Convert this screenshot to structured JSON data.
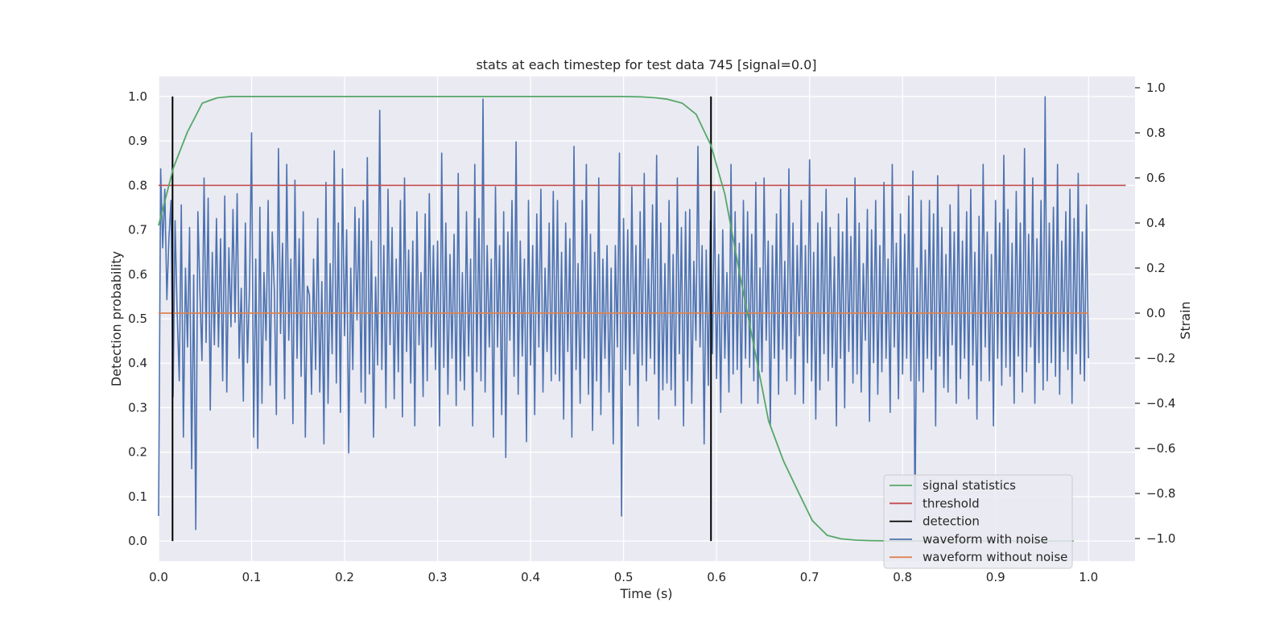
{
  "chart_data": {
    "type": "line",
    "title": "stats at each timestep for test data 745 [signal=0.0]",
    "xlabel": "Time (s)",
    "ylabel": "Detection probability",
    "y2label": "Strain",
    "xlim": [
      0.0,
      1.05
    ],
    "ylim": [
      -0.045,
      1.045
    ],
    "y2lim": [
      -1.1,
      1.05
    ],
    "xticks": [
      "0.0",
      "0.1",
      "0.2",
      "0.3",
      "0.4",
      "0.5",
      "0.6",
      "0.7",
      "0.8",
      "0.9",
      "1.0"
    ],
    "yticks": [
      "0.0",
      "0.1",
      "0.2",
      "0.3",
      "0.4",
      "0.5",
      "0.6",
      "0.7",
      "0.8",
      "0.9",
      "1.0"
    ],
    "y2ticks": [
      "−1.0",
      "−0.8",
      "−0.6",
      "−0.4",
      "−0.2",
      "0.0",
      "0.2",
      "0.4",
      "0.6",
      "0.8",
      "1.0"
    ],
    "grid": true,
    "legend_position": "lower right",
    "legend": [
      "signal statistics",
      "threshold",
      "detection",
      "waveform with noise",
      "waveform without noise"
    ],
    "colors": {
      "signal_statistics": "#55a868",
      "threshold": "#c44e52",
      "detection": "#000000",
      "waveform_with_noise": "#4c72b0",
      "waveform_without_noise": "#dd8452",
      "axes_background": "#eaeaf2",
      "grid": "#ffffff"
    },
    "signal_statistics": {
      "axis": "left",
      "x": [
        0.0,
        0.016,
        0.031,
        0.047,
        0.063,
        0.078,
        0.094,
        0.109,
        0.125,
        0.2,
        0.3,
        0.4,
        0.5,
        0.52,
        0.535,
        0.547,
        0.563,
        0.578,
        0.594,
        0.609,
        0.625,
        0.641,
        0.656,
        0.672,
        0.688,
        0.703,
        0.719,
        0.734,
        0.75,
        0.766,
        0.8,
        0.9,
        0.984
      ],
      "y": [
        0.71,
        0.84,
        0.92,
        0.985,
        0.997,
        1.0,
        1.0,
        1.0,
        1.0,
        1.0,
        1.0,
        1.0,
        1.0,
        0.999,
        0.997,
        0.994,
        0.985,
        0.96,
        0.89,
        0.78,
        0.6,
        0.43,
        0.27,
        0.18,
        0.11,
        0.046,
        0.013,
        0.005,
        0.002,
        0.001,
        0.0,
        0.0,
        0.0
      ]
    },
    "threshold": {
      "axis": "left",
      "x": [
        0.0,
        1.04
      ],
      "y": [
        0.8,
        0.8
      ]
    },
    "detections": [
      {
        "axis": "left",
        "x": 0.015,
        "y": [
          0.0,
          1.0
        ]
      },
      {
        "axis": "left",
        "x": 0.594,
        "y": [
          0.0,
          1.0
        ]
      }
    ],
    "waveform_with_noise": {
      "axis": "right",
      "x_start": 0.0,
      "x_end": 1.0,
      "values": [
        -0.9,
        0.64,
        0.29,
        0.55,
        0.06,
        0.33,
        0.5,
        -0.37,
        0.41,
        0.0,
        -0.3,
        0.48,
        -0.55,
        0.2,
        -0.15,
        0.38,
        -0.69,
        0.17,
        -0.96,
        0.45,
        0.1,
        -0.21,
        0.6,
        -0.13,
        0.51,
        -0.43,
        0.27,
        -0.14,
        0.42,
        -0.15,
        0.33,
        -0.3,
        0.52,
        -0.35,
        0.29,
        -0.06,
        0.46,
        -0.04,
        0.53,
        -0.2,
        0.11,
        -0.39,
        0.4,
        -0.22,
        0.12,
        0.8,
        -0.55,
        0.24,
        -0.6,
        0.47,
        -0.4,
        0.18,
        -0.12,
        0.5,
        -0.32,
        0.36,
        0.1,
        -0.45,
        0.73,
        -0.09,
        0.31,
        -0.38,
        0.66,
        -0.12,
        0.24,
        -0.49,
        0.59,
        -0.2,
        0.33,
        -0.28,
        0.45,
        -0.55,
        0.12,
        0.08,
        -0.36,
        0.24,
        -0.25,
        0.42,
        -0.35,
        0.14,
        -0.58,
        0.58,
        -0.4,
        0.22,
        -0.18,
        0.72,
        -0.31,
        0.4,
        -0.44,
        0.64,
        -0.1,
        0.37,
        -0.62,
        0.2,
        -0.25,
        0.47,
        -0.03,
        0.42,
        -0.35,
        0.5,
        -0.4,
        0.69,
        -0.27,
        0.32,
        -0.55,
        0.16,
        -0.23,
        0.9,
        -0.25,
        0.3,
        -0.42,
        0.55,
        -0.14,
        0.38,
        -0.38,
        0.24,
        -0.26,
        0.5,
        -0.46,
        0.6,
        -0.17,
        0.28,
        -0.31,
        0.32,
        -0.5,
        0.45,
        -0.14,
        0.18,
        -0.37,
        0.44,
        -0.3,
        0.53,
        -0.15,
        0.3,
        -0.25,
        0.32,
        -0.5,
        0.71,
        -0.24,
        0.4,
        -0.36,
        0.26,
        -0.2,
        0.35,
        -0.41,
        0.62,
        -0.3,
        0.18,
        -0.34,
        0.45,
        -0.19,
        0.24,
        -0.5,
        0.66,
        -0.26,
        0.42,
        -0.3,
        0.95,
        -0.35,
        0.3,
        -0.15,
        0.24,
        -0.55,
        0.56,
        -0.15,
        0.3,
        -0.45,
        0.45,
        -0.64,
        0.36,
        -0.12,
        0.5,
        -0.28,
        0.76,
        -0.36,
        0.32,
        -0.19,
        0.24,
        -0.57,
        0.5,
        -0.23,
        0.3,
        -0.45,
        0.44,
        -0.15,
        0.55,
        -0.35,
        0.2,
        -0.17,
        0.4,
        -0.3,
        0.54,
        -0.27,
        0.5,
        -0.3,
        0.27,
        -0.47,
        0.4,
        -0.17,
        0.33,
        -0.55,
        0.74,
        -0.25,
        0.22,
        -0.4,
        0.5,
        -0.2,
        0.66,
        -0.36,
        0.35,
        -0.52,
        0.27,
        -0.3,
        0.6,
        -0.45,
        0.24,
        -0.2,
        0.3,
        -0.35,
        0.2,
        -0.58,
        0.3,
        -0.15,
        0.71,
        -0.9,
        0.42,
        -0.25,
        0.37,
        -0.32,
        0.56,
        -0.18,
        0.3,
        -0.5,
        0.45,
        -0.23,
        0.62,
        -0.3,
        0.24,
        -0.2,
        0.48,
        -0.27,
        0.7,
        -0.47,
        0.4,
        -0.34,
        0.22,
        -0.31,
        0.5,
        -0.34,
        0.26,
        -0.41,
        0.6,
        -0.18,
        0.38,
        -0.5,
        0.45,
        -0.3,
        0.46,
        -0.4,
        0.23,
        -0.12,
        0.74,
        -0.15,
        0.3,
        -0.58,
        0.28,
        -0.32,
        0.41,
        -0.18,
        0.54,
        -0.29,
        0.26,
        -0.44,
        0.37,
        -0.2,
        0.18,
        -0.35,
        0.66,
        -0.27,
        0.45,
        -0.25,
        0.31,
        -0.4,
        0.5,
        -0.2,
        0.45,
        -0.24,
        0.35,
        -0.3,
        0.58,
        -0.4,
        0.2,
        -0.26,
        0.6,
        -0.12,
        0.32,
        -0.5,
        0.3,
        -0.2,
        0.44,
        -0.36,
        0.55,
        -0.16,
        0.23,
        -0.3,
        0.64,
        -0.2,
        0.4,
        -0.36,
        0.3,
        -0.1,
        0.5,
        -0.4,
        0.3,
        -0.22,
        0.68,
        -0.3,
        0.27,
        -0.47,
        0.4,
        -0.34,
        0.45,
        -0.18,
        0.55,
        -0.3,
        0.38,
        -0.24,
        0.25,
        -0.5,
        0.44,
        -0.2,
        0.36,
        -0.42,
        0.51,
        -0.17,
        0.34,
        -0.31,
        0.6,
        -0.27,
        0.4,
        -0.35,
        0.22,
        -0.12,
        0.46,
        -0.48,
        0.37,
        -0.22,
        0.5,
        -0.36,
        0.3,
        -0.26,
        0.58,
        -0.2,
        0.24,
        -0.44,
        0.66,
        -0.15,
        0.31,
        -0.38,
        0.44,
        -0.27,
        0.35,
        -0.2,
        0.52,
        -0.3,
        0.63,
        -0.92,
        0.2,
        -0.3,
        0.5,
        -0.35,
        0.28,
        -0.2,
        0.5,
        -0.25,
        0.44,
        -0.5,
        0.61,
        -0.19,
        0.38,
        -0.33,
        0.26,
        -0.35,
        0.48,
        -0.14,
        0.36,
        -0.4,
        0.57,
        -0.29,
        0.32,
        -0.2,
        0.45,
        -0.38,
        0.55,
        -0.23,
        0.27,
        -0.47,
        0.43,
        -0.3,
        0.66,
        -0.15,
        0.36,
        -0.3,
        0.26,
        -0.5,
        0.5,
        -0.2,
        0.4,
        -0.32,
        0.7,
        -0.24,
        0.46,
        -0.28,
        0.31,
        -0.4,
        0.54,
        -0.19,
        0.4,
        -0.35,
        0.73,
        -0.26,
        0.35,
        -0.15,
        0.6,
        -0.4,
        0.33,
        -0.22,
        0.5,
        -0.34,
        0.96,
        -0.3,
        0.4,
        -0.22,
        0.47,
        -0.28,
        0.66,
        -0.36,
        0.32,
        -0.17,
        0.45,
        -0.25,
        0.55,
        -0.4,
        0.42,
        -0.18,
        0.62,
        -0.27,
        0.36,
        -0.3,
        0.48,
        -0.2
      ],
      "note_hidden": ""
    },
    "waveform_without_noise": {
      "axis": "right",
      "x": [
        0.0,
        1.0
      ],
      "y": [
        0.0,
        0.0
      ]
    }
  }
}
